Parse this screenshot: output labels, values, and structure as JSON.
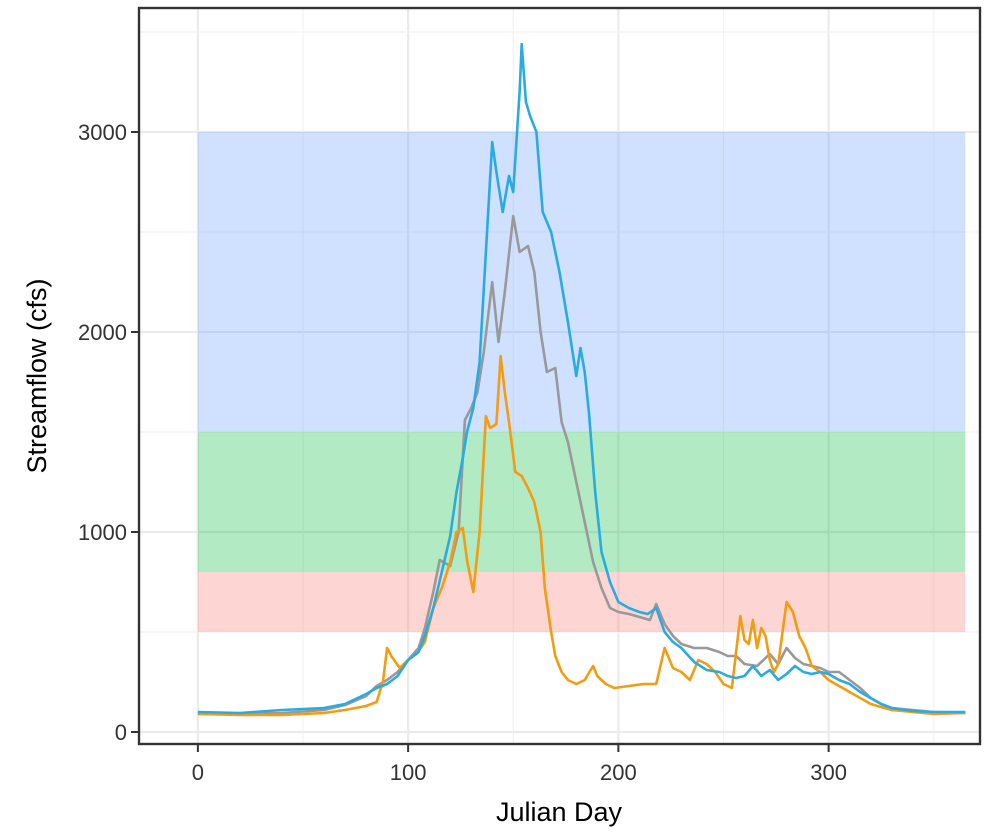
{
  "chart_data": {
    "type": "line",
    "title": "",
    "xlabel": "Julian Day",
    "ylabel": "Streamflow (cfs)",
    "xlim": [
      -28,
      372
    ],
    "ylim": [
      -60,
      3620
    ],
    "x_ticks": [
      0,
      100,
      200,
      300
    ],
    "y_ticks": [
      0,
      1000,
      2000,
      3000
    ],
    "grid": true,
    "legend": "none",
    "bands": [
      {
        "y0": 500,
        "y1": 800,
        "x0": 0,
        "x1": 365,
        "color": "#f8766d"
      },
      {
        "y0": 800,
        "y1": 1500,
        "x0": 0,
        "x1": 365,
        "color": "#00ba38"
      },
      {
        "y0": 1500,
        "y1": 3000,
        "x0": 0,
        "x1": 365,
        "color": "#619cff"
      }
    ],
    "series": [
      {
        "color": "#999999",
        "points": [
          [
            0,
            95
          ],
          [
            20,
            92
          ],
          [
            40,
            95
          ],
          [
            60,
            110
          ],
          [
            70,
            135
          ],
          [
            80,
            180
          ],
          [
            85,
            230
          ],
          [
            90,
            260
          ],
          [
            95,
            300
          ],
          [
            100,
            360
          ],
          [
            105,
            420
          ],
          [
            108,
            520
          ],
          [
            112,
            700
          ],
          [
            115,
            860
          ],
          [
            120,
            830
          ],
          [
            124,
            1000
          ],
          [
            127,
            1560
          ],
          [
            130,
            1620
          ],
          [
            133,
            1700
          ],
          [
            136,
            1900
          ],
          [
            140,
            2250
          ],
          [
            143,
            1950
          ],
          [
            146,
            2200
          ],
          [
            150,
            2580
          ],
          [
            153,
            2400
          ],
          [
            157,
            2430
          ],
          [
            160,
            2300
          ],
          [
            163,
            2000
          ],
          [
            166,
            1800
          ],
          [
            170,
            1820
          ],
          [
            173,
            1550
          ],
          [
            176,
            1450
          ],
          [
            180,
            1250
          ],
          [
            184,
            1050
          ],
          [
            188,
            850
          ],
          [
            192,
            720
          ],
          [
            196,
            620
          ],
          [
            200,
            600
          ],
          [
            205,
            590
          ],
          [
            210,
            575
          ],
          [
            215,
            560
          ],
          [
            218,
            640
          ],
          [
            222,
            540
          ],
          [
            226,
            480
          ],
          [
            230,
            440
          ],
          [
            236,
            420
          ],
          [
            242,
            420
          ],
          [
            248,
            400
          ],
          [
            252,
            380
          ],
          [
            256,
            380
          ],
          [
            260,
            340
          ],
          [
            266,
            330
          ],
          [
            272,
            390
          ],
          [
            276,
            340
          ],
          [
            280,
            420
          ],
          [
            284,
            370
          ],
          [
            288,
            340
          ],
          [
            292,
            330
          ],
          [
            296,
            320
          ],
          [
            300,
            300
          ],
          [
            305,
            300
          ],
          [
            310,
            260
          ],
          [
            315,
            220
          ],
          [
            320,
            170
          ],
          [
            325,
            140
          ],
          [
            330,
            120
          ],
          [
            340,
            110
          ],
          [
            350,
            100
          ],
          [
            365,
            95
          ]
        ]
      },
      {
        "color": "#f39c12",
        "points": [
          [
            0,
            90
          ],
          [
            20,
            85
          ],
          [
            40,
            85
          ],
          [
            60,
            95
          ],
          [
            70,
            110
          ],
          [
            80,
            130
          ],
          [
            85,
            150
          ],
          [
            88,
            250
          ],
          [
            90,
            420
          ],
          [
            92,
            380
          ],
          [
            96,
            320
          ],
          [
            100,
            360
          ],
          [
            104,
            390
          ],
          [
            108,
            450
          ],
          [
            112,
            620
          ],
          [
            116,
            720
          ],
          [
            120,
            850
          ],
          [
            123,
            1000
          ],
          [
            126,
            1020
          ],
          [
            128,
            860
          ],
          [
            131,
            700
          ],
          [
            134,
            1000
          ],
          [
            137,
            1580
          ],
          [
            139,
            1520
          ],
          [
            142,
            1540
          ],
          [
            144,
            1880
          ],
          [
            146,
            1700
          ],
          [
            148,
            1550
          ],
          [
            151,
            1300
          ],
          [
            154,
            1280
          ],
          [
            157,
            1220
          ],
          [
            160,
            1150
          ],
          [
            163,
            1000
          ],
          [
            165,
            720
          ],
          [
            168,
            500
          ],
          [
            170,
            380
          ],
          [
            173,
            300
          ],
          [
            176,
            260
          ],
          [
            180,
            240
          ],
          [
            184,
            260
          ],
          [
            188,
            330
          ],
          [
            190,
            280
          ],
          [
            194,
            240
          ],
          [
            198,
            220
          ],
          [
            205,
            230
          ],
          [
            212,
            240
          ],
          [
            218,
            240
          ],
          [
            222,
            420
          ],
          [
            226,
            320
          ],
          [
            230,
            300
          ],
          [
            234,
            260
          ],
          [
            238,
            360
          ],
          [
            242,
            340
          ],
          [
            246,
            300
          ],
          [
            250,
            240
          ],
          [
            254,
            220
          ],
          [
            258,
            580
          ],
          [
            260,
            460
          ],
          [
            262,
            440
          ],
          [
            264,
            560
          ],
          [
            266,
            420
          ],
          [
            268,
            520
          ],
          [
            270,
            480
          ],
          [
            272,
            360
          ],
          [
            274,
            300
          ],
          [
            276,
            340
          ],
          [
            280,
            650
          ],
          [
            283,
            600
          ],
          [
            286,
            480
          ],
          [
            289,
            420
          ],
          [
            292,
            330
          ],
          [
            296,
            300
          ],
          [
            300,
            260
          ],
          [
            305,
            230
          ],
          [
            310,
            200
          ],
          [
            315,
            170
          ],
          [
            320,
            140
          ],
          [
            330,
            110
          ],
          [
            340,
            100
          ],
          [
            350,
            90
          ],
          [
            365,
            95
          ]
        ]
      },
      {
        "color": "#29abe2",
        "points": [
          [
            0,
            100
          ],
          [
            20,
            95
          ],
          [
            40,
            110
          ],
          [
            60,
            120
          ],
          [
            70,
            140
          ],
          [
            80,
            190
          ],
          [
            85,
            220
          ],
          [
            90,
            240
          ],
          [
            95,
            280
          ],
          [
            100,
            360
          ],
          [
            105,
            400
          ],
          [
            108,
            480
          ],
          [
            112,
            620
          ],
          [
            116,
            800
          ],
          [
            120,
            980
          ],
          [
            123,
            1200
          ],
          [
            126,
            1370
          ],
          [
            128,
            1500
          ],
          [
            131,
            1620
          ],
          [
            134,
            1850
          ],
          [
            137,
            2400
          ],
          [
            140,
            2950
          ],
          [
            142,
            2800
          ],
          [
            145,
            2600
          ],
          [
            148,
            2780
          ],
          [
            150,
            2700
          ],
          [
            153,
            3200
          ],
          [
            154,
            3440
          ],
          [
            156,
            3150
          ],
          [
            158,
            3080
          ],
          [
            161,
            3000
          ],
          [
            164,
            2600
          ],
          [
            168,
            2500
          ],
          [
            172,
            2300
          ],
          [
            176,
            2050
          ],
          [
            180,
            1780
          ],
          [
            182,
            1920
          ],
          [
            184,
            1800
          ],
          [
            186,
            1600
          ],
          [
            189,
            1200
          ],
          [
            192,
            900
          ],
          [
            196,
            750
          ],
          [
            200,
            650
          ],
          [
            205,
            620
          ],
          [
            210,
            600
          ],
          [
            214,
            590
          ],
          [
            218,
            620
          ],
          [
            222,
            500
          ],
          [
            226,
            450
          ],
          [
            230,
            420
          ],
          [
            236,
            350
          ],
          [
            242,
            310
          ],
          [
            248,
            300
          ],
          [
            252,
            280
          ],
          [
            256,
            270
          ],
          [
            260,
            280
          ],
          [
            264,
            330
          ],
          [
            268,
            280
          ],
          [
            272,
            310
          ],
          [
            276,
            260
          ],
          [
            280,
            290
          ],
          [
            284,
            330
          ],
          [
            288,
            300
          ],
          [
            292,
            290
          ],
          [
            296,
            300
          ],
          [
            300,
            290
          ],
          [
            305,
            260
          ],
          [
            310,
            240
          ],
          [
            315,
            200
          ],
          [
            320,
            170
          ],
          [
            325,
            140
          ],
          [
            330,
            120
          ],
          [
            340,
            105
          ],
          [
            350,
            100
          ],
          [
            365,
            100
          ]
        ]
      }
    ]
  }
}
